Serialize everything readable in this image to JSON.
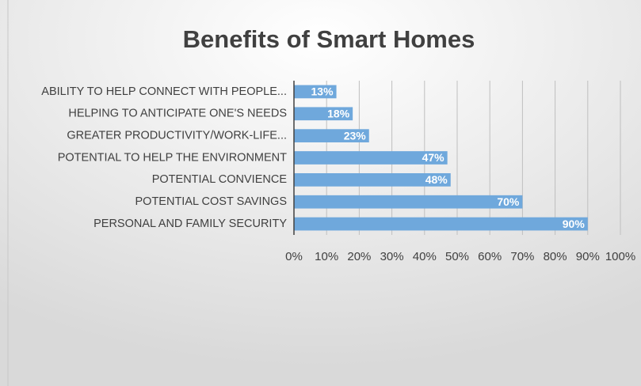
{
  "chart_data": {
    "type": "bar",
    "orientation": "horizontal",
    "title": "Benefits of Smart Homes",
    "categories": [
      "ABILITY TO HELP CONNECT WITH PEOPLE...",
      "HELPING TO ANTICIPATE ONE'S NEEDS",
      "GREATER PRODUCTIVITY/WORK-LIFE...",
      "POTENTIAL TO HELP THE ENVIRONMENT",
      "POTENTIAL CONVIENCE",
      "POTENTIAL COST SAVINGS",
      "PERSONAL AND FAMILY SECURITY"
    ],
    "values": [
      13,
      18,
      23,
      47,
      48,
      70,
      90
    ],
    "value_labels": [
      "13%",
      "18%",
      "23%",
      "47%",
      "48%",
      "70%",
      "90%"
    ],
    "color": "#6fa8dc",
    "xlim": [
      0,
      100
    ],
    "xticks": [
      {
        "value": 0,
        "label": "0%"
      },
      {
        "value": 10,
        "label": "10%"
      },
      {
        "value": 20,
        "label": "20%"
      },
      {
        "value": 30,
        "label": "30%"
      },
      {
        "value": 40,
        "label": "40%"
      },
      {
        "value": 50,
        "label": "50%"
      },
      {
        "value": 60,
        "label": "60%"
      },
      {
        "value": 70,
        "label": "70%"
      },
      {
        "value": 80,
        "label": "80%"
      },
      {
        "value": 90,
        "label": "90%"
      },
      {
        "value": 100,
        "label": "100%"
      }
    ],
    "grid": true
  }
}
